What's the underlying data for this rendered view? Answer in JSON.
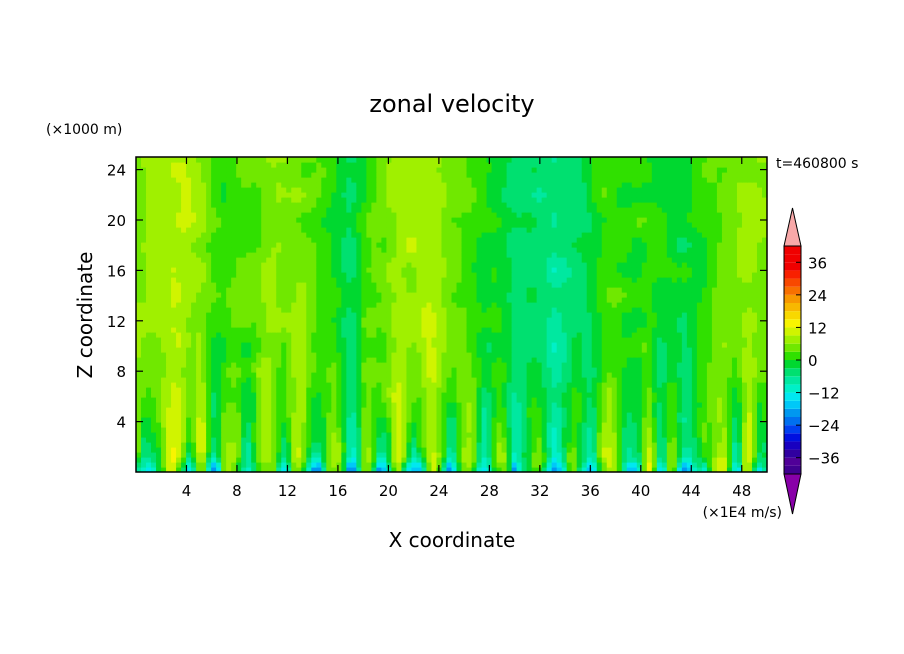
{
  "chart_data": {
    "type": "heatmap",
    "title": "zonal velocity",
    "xlabel": "X coordinate",
    "ylabel": "Z coordinate",
    "y_unit": "(×1000 m)",
    "x_unit": "(×1E4 m/s)",
    "time_label": "t=460800 s",
    "xlim": [
      0,
      50
    ],
    "ylim": [
      0,
      25
    ],
    "x_ticks": [
      4,
      8,
      12,
      16,
      20,
      24,
      28,
      32,
      36,
      40,
      44,
      48
    ],
    "y_ticks": [
      4,
      8,
      12,
      16,
      20,
      24
    ],
    "grid": false,
    "colorbar": {
      "levels": [
        -42,
        -39,
        -36,
        -33,
        -30,
        -27,
        -24,
        -21,
        -18,
        -15,
        -12,
        -9,
        -6,
        -3,
        0,
        3,
        6,
        9,
        12,
        15,
        18,
        21,
        24,
        27,
        30,
        33,
        36,
        39,
        42
      ],
      "tick_values": [
        -36,
        -24,
        -12,
        0,
        12,
        24,
        36
      ],
      "tick_labels": [
        "−36",
        "−24",
        "−12",
        "0",
        "12",
        "24",
        "36"
      ],
      "colors": [
        "#400090",
        "#500098",
        "#3000a0",
        "#1800c0",
        "#0010e0",
        "#0040f0",
        "#0070f0",
        "#0098f0",
        "#00c8f8",
        "#00e8f0",
        "#00f0c8",
        "#00e8a0",
        "#00e070",
        "#00d830",
        "#30e000",
        "#70e800",
        "#a0f000",
        "#d0f400",
        "#f8f400",
        "#f8d800",
        "#f8b800",
        "#f89800",
        "#f87000",
        "#f84800",
        "#f82000",
        "#f00000"
      ],
      "under_color": "#8800a8",
      "over_color": "#f8a8a8"
    }
  }
}
